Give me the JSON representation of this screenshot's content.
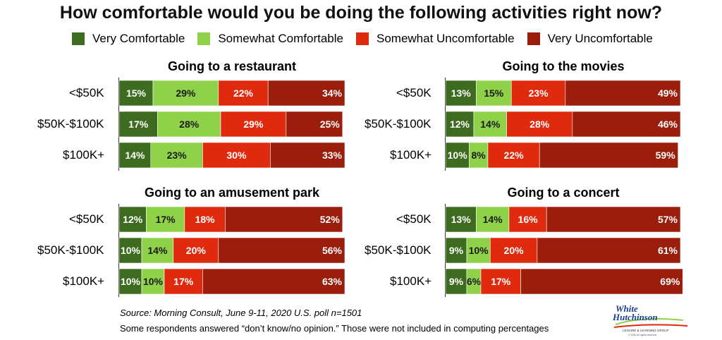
{
  "title": "How comfortable would you be doing the following activities right now?",
  "legend": [
    {
      "label": "Very Comfortable",
      "color": "#3d6b1f"
    },
    {
      "label": "Somewhat Comfortable",
      "color": "#8fd24a"
    },
    {
      "label": "Somewhat Uncomfortable",
      "color": "#e02a0e"
    },
    {
      "label": "Very Uncomfortable",
      "color": "#9b1d0c"
    }
  ],
  "chart_data": [
    {
      "type": "bar",
      "orientation": "horizontal-stacked",
      "title": "Going to a restaurant",
      "categories": [
        "<$50K",
        "$50K-$100K",
        "$100K+"
      ],
      "series": [
        {
          "name": "Very Comfortable",
          "values": [
            15,
            17,
            14
          ]
        },
        {
          "name": "Somewhat Comfortable",
          "values": [
            29,
            28,
            23
          ]
        },
        {
          "name": "Somewhat Uncomfortable",
          "values": [
            22,
            29,
            30
          ]
        },
        {
          "name": "Very Uncomfortable",
          "values": [
            34,
            25,
            33
          ]
        }
      ],
      "value_labels": [
        [
          "15%",
          "29%",
          "22%",
          "34%"
        ],
        [
          "17%",
          "28%",
          "29%",
          "25%"
        ],
        [
          "14%",
          "23%",
          "30%",
          "33%"
        ]
      ]
    },
    {
      "type": "bar",
      "orientation": "horizontal-stacked",
      "title": "Going to the movies",
      "categories": [
        "<$50K",
        "$50K-$100K",
        "$100K+"
      ],
      "series": [
        {
          "name": "Very Comfortable",
          "values": [
            13,
            12,
            10
          ]
        },
        {
          "name": "Somewhat Comfortable",
          "values": [
            15,
            14,
            8
          ]
        },
        {
          "name": "Somewhat Uncomfortable",
          "values": [
            23,
            28,
            22
          ]
        },
        {
          "name": "Very Uncomfortable",
          "values": [
            49,
            46,
            59
          ]
        }
      ],
      "value_labels": [
        [
          "13%",
          "15%",
          "23%",
          "49%"
        ],
        [
          "12%",
          "14%",
          "28%",
          "46%"
        ],
        [
          "10%",
          "8%",
          "22%",
          "59%"
        ]
      ]
    },
    {
      "type": "bar",
      "orientation": "horizontal-stacked",
      "title": "Going to an amusement park",
      "categories": [
        "<$50K",
        "$50K-$100K",
        "$100K+"
      ],
      "series": [
        {
          "name": "Very Comfortable",
          "values": [
            12,
            10,
            10
          ]
        },
        {
          "name": "Somewhat Comfortable",
          "values": [
            17,
            14,
            10
          ]
        },
        {
          "name": "Somewhat Uncomfortable",
          "values": [
            18,
            20,
            17
          ]
        },
        {
          "name": "Very Uncomfortable",
          "values": [
            52,
            56,
            63
          ]
        }
      ],
      "value_labels": [
        [
          "12%",
          "17%",
          "18%",
          "52%"
        ],
        [
          "10%",
          "14%",
          "20%",
          "56%"
        ],
        [
          "10%",
          "10%",
          "17%",
          "63%"
        ]
      ]
    },
    {
      "type": "bar",
      "orientation": "horizontal-stacked",
      "title": "Going to a concert",
      "categories": [
        "<$50K",
        "$50K-$100K",
        "$100K+"
      ],
      "series": [
        {
          "name": "Very Comfortable",
          "values": [
            13,
            9,
            9
          ]
        },
        {
          "name": "Somewhat Comfortable",
          "values": [
            14,
            10,
            6
          ]
        },
        {
          "name": "Somewhat Uncomfortable",
          "values": [
            16,
            20,
            17
          ]
        },
        {
          "name": "Very Uncomfortable",
          "values": [
            57,
            61,
            69
          ]
        }
      ],
      "value_labels": [
        [
          "13%",
          "14%",
          "16%",
          "57%"
        ],
        [
          "9%",
          "10%",
          "20%",
          "61%"
        ],
        [
          "9%",
          "6%",
          "17%",
          "69%"
        ]
      ]
    }
  ],
  "footnotes": {
    "source": "Source: Morning Consult, June 9-11, 2020 U.S. poll n=1501",
    "note": "Some respondents answered “don’t know/no opinion.” Those were not included in computing percentages"
  },
  "logo": {
    "line1": "White",
    "line2": "Hutchinson",
    "tagline": "LEISURE & LEARNING GROUP",
    "copyright": "© 2020 all rights reserved"
  }
}
